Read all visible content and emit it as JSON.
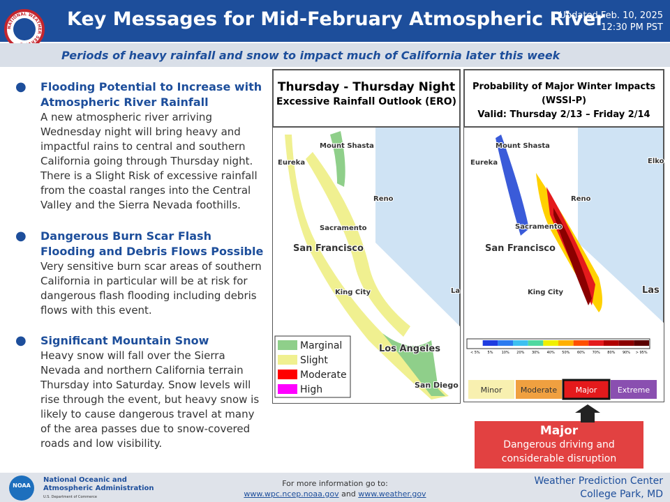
{
  "header": {
    "logo_text": "NATIONAL WEATHER SERVICE",
    "title": "Key Messages for Mid-February Atmospheric River",
    "updated_date": "Updated Feb. 10, 2025",
    "updated_time": "12:30 PM PST",
    "subtitle": "Periods of heavy rainfall and snow to impact much of California later this week"
  },
  "messages": [
    {
      "heading": "Flooding Potential to Increase with Atmospheric River Rainfall",
      "body": "A new atmospheric river arriving Wednesday night will bring heavy and impactful rains to central and southern California going through Thursday night. There is a Slight Risk of excessive rainfall from the coastal ranges into the Central Valley and the Sierra Nevada foothills."
    },
    {
      "heading": "Dangerous Burn Scar Flash Flooding and Debris Flows Possible",
      "body": "Very sensitive burn scar areas of southern California in particular will be at risk for dangerous flash flooding including debris flows with this event."
    },
    {
      "heading": "Significant Mountain Snow",
      "body": "Heavy snow will fall over the Sierra Nevada and northern California terrain Thursday into Saturday. Snow levels will rise through the event, but heavy snow is likely to cause dangerous travel at many of the area passes due to snow-covered roads and low visibility."
    }
  ],
  "ero_map": {
    "title_lines": [
      "Thursday - Thursday Night",
      "Excessive Rainfall Outlook (ERO)"
    ],
    "cities": [
      "Mount Shasta",
      "Eureka",
      "Reno",
      "Sacramento",
      "San Francisco",
      "King City",
      "Los Angeles",
      "San Diego",
      "La"
    ],
    "legend": [
      "Marginal",
      "Slight",
      "Moderate",
      "High"
    ]
  },
  "wssi_map": {
    "title_lines": [
      "Probability of Major Winter Impacts",
      "(WSSI-P)",
      "Valid: Thursday 2/13 – Friday 2/14"
    ],
    "cities": [
      "Mount Shasta",
      "Eureka",
      "Elko",
      "Reno",
      "Sacramento",
      "San Francisco",
      "King City",
      "Las"
    ],
    "scale_labels": [
      "< 5%",
      "5%",
      "10%",
      "20%",
      "30%",
      "40%",
      "50%",
      "60%",
      "70%",
      "80%",
      "90%",
      "> 95%"
    ],
    "categories": [
      "Minor",
      "Moderate",
      "Major",
      "Extreme"
    ]
  },
  "callout": {
    "title": "Major",
    "lines": [
      "Dangerous driving and",
      "considerable disruption"
    ]
  },
  "footer": {
    "noaa_logo": "NOAA",
    "noaa_lines": [
      "National Oceanic and",
      "Atmospheric Administration"
    ],
    "noaa_dept": "U.S. Department of Commerce",
    "info": "For more information go to:",
    "link1": "www.wpc.ncep.noaa.gov",
    "and": "and",
    "link2": "www.weather.gov",
    "wpc_lines": [
      "Weather Prediction Center",
      "College Park, MD"
    ]
  }
}
